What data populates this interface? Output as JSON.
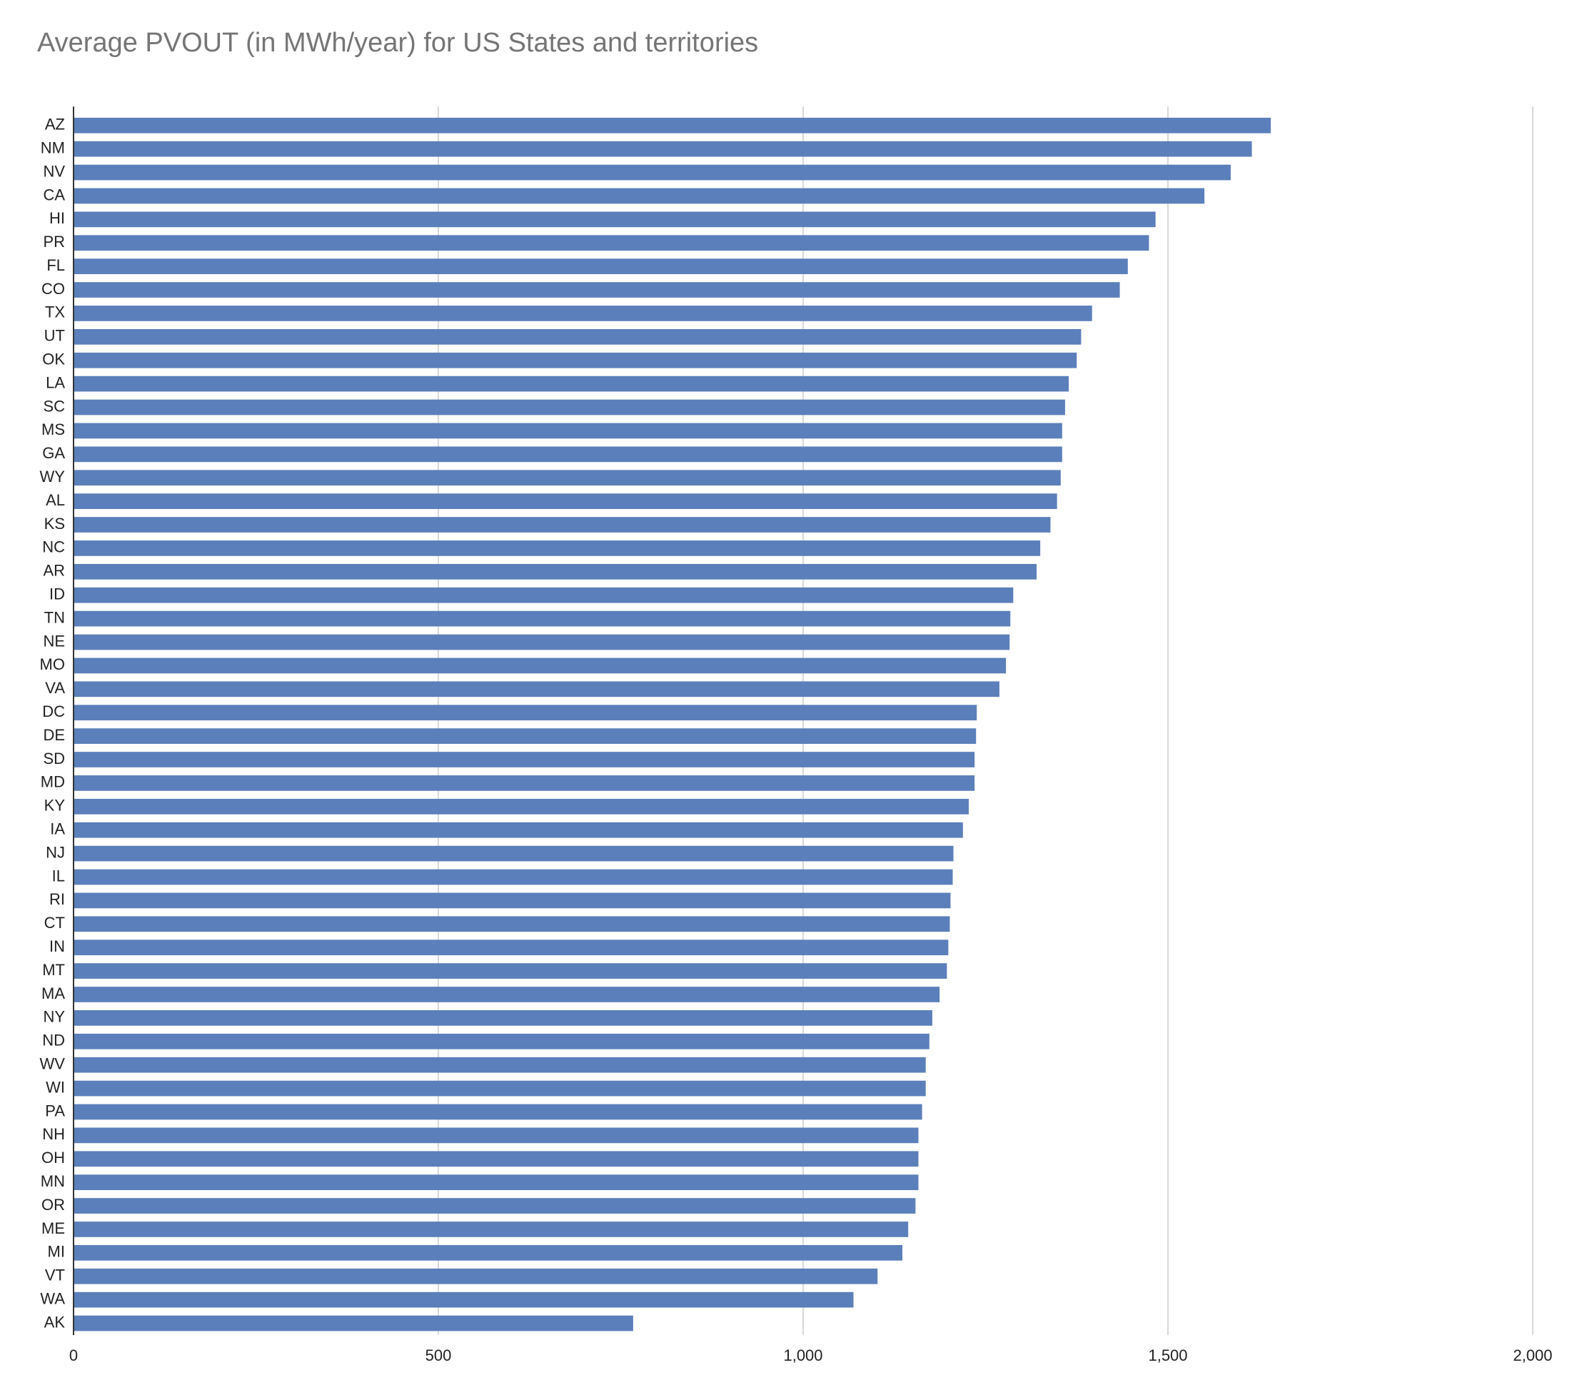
{
  "chart_data": {
    "type": "bar",
    "orientation": "horizontal",
    "title": "Average PVOUT (in MWh/year) for US States and territories",
    "categories": [
      "AZ",
      "NM",
      "NV",
      "CA",
      "HI",
      "PR",
      "FL",
      "CO",
      "TX",
      "UT",
      "OK",
      "LA",
      "SC",
      "MS",
      "GA",
      "WY",
      "AL",
      "KS",
      "NC",
      "AR",
      "ID",
      "TN",
      "NE",
      "MO",
      "VA",
      "DC",
      "DE",
      "SD",
      "MD",
      "KY",
      "IA",
      "NJ",
      "IL",
      "RI",
      "CT",
      "IN",
      "MT",
      "MA",
      "NY",
      "ND",
      "WV",
      "WI",
      "PA",
      "NH",
      "OH",
      "MN",
      "OR",
      "ME",
      "MI",
      "VT",
      "WA",
      "AK"
    ],
    "values": [
      1641,
      1615,
      1586,
      1550,
      1483,
      1474,
      1445,
      1434,
      1396,
      1381,
      1375,
      1364,
      1359,
      1355,
      1355,
      1353,
      1348,
      1339,
      1325,
      1320,
      1288,
      1284,
      1283,
      1278,
      1269,
      1238,
      1237,
      1235,
      1235,
      1227,
      1219,
      1206,
      1205,
      1202,
      1201,
      1199,
      1197,
      1187,
      1177,
      1173,
      1168,
      1168,
      1163,
      1158,
      1158,
      1158,
      1154,
      1144,
      1136,
      1102,
      1069,
      767
    ],
    "color": "#5b7fba",
    "xlim": [
      0,
      2000
    ],
    "xticks": [
      0,
      500,
      {
        "value": 1000,
        "label": "1,000"
      },
      {
        "value": 1500,
        "label": "1,500"
      },
      {
        "value": 2000,
        "label": "2,000"
      }
    ],
    "grid": true
  }
}
